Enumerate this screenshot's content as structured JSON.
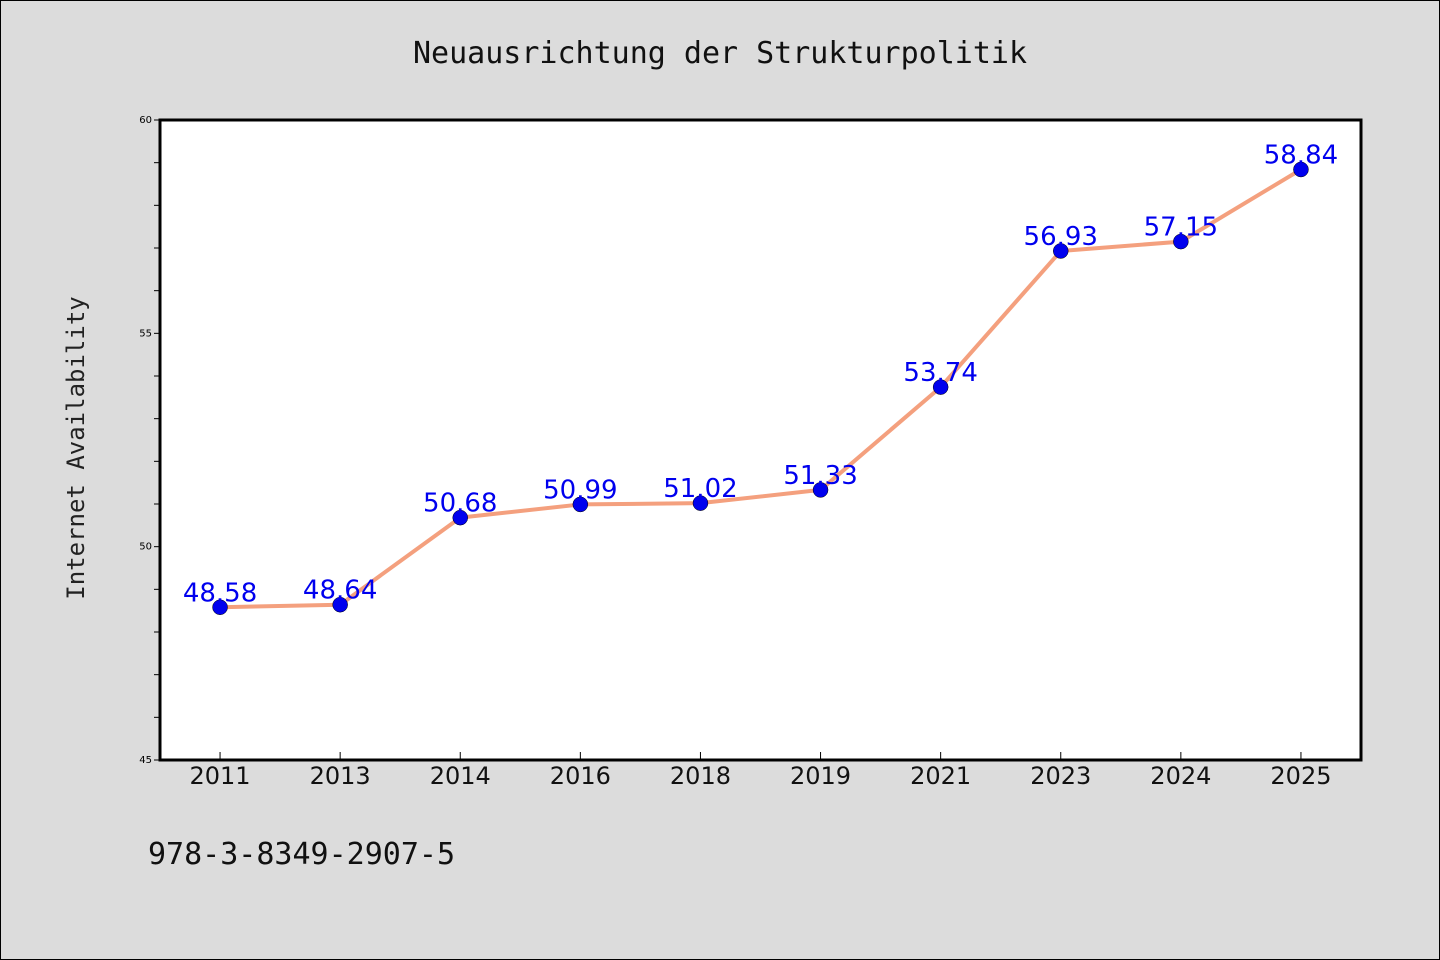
{
  "chart_data": {
    "type": "line",
    "title": "Neuausrichtung der Strukturpolitik",
    "xlabel": "",
    "ylabel": "Internet Availability",
    "categories": [
      "2011",
      "2013",
      "2014",
      "2016",
      "2018",
      "2019",
      "2021",
      "2023",
      "2024",
      "2025"
    ],
    "series": [
      {
        "values": [
          48.58,
          48.64,
          50.68,
          50.99,
          51.02,
          51.33,
          53.74,
          56.93,
          57.15,
          58.84
        ],
        "line_color": "#f4a07e",
        "marker_color": "#0000ee"
      }
    ],
    "data_labels": [
      "48.58",
      "48.64",
      "50.68",
      "50.99",
      "51.02",
      "51.33",
      "53.74",
      "56.93",
      "57.15",
      "58.84"
    ],
    "ylim": [
      45,
      60
    ],
    "yticks": [
      45,
      50,
      55,
      60
    ],
    "grid": false,
    "legend": "none"
  },
  "footer": {
    "text": "978-3-8349-2907-5"
  },
  "colors": {
    "background": "#dcdcdc",
    "plot_background": "#ffffff"
  }
}
